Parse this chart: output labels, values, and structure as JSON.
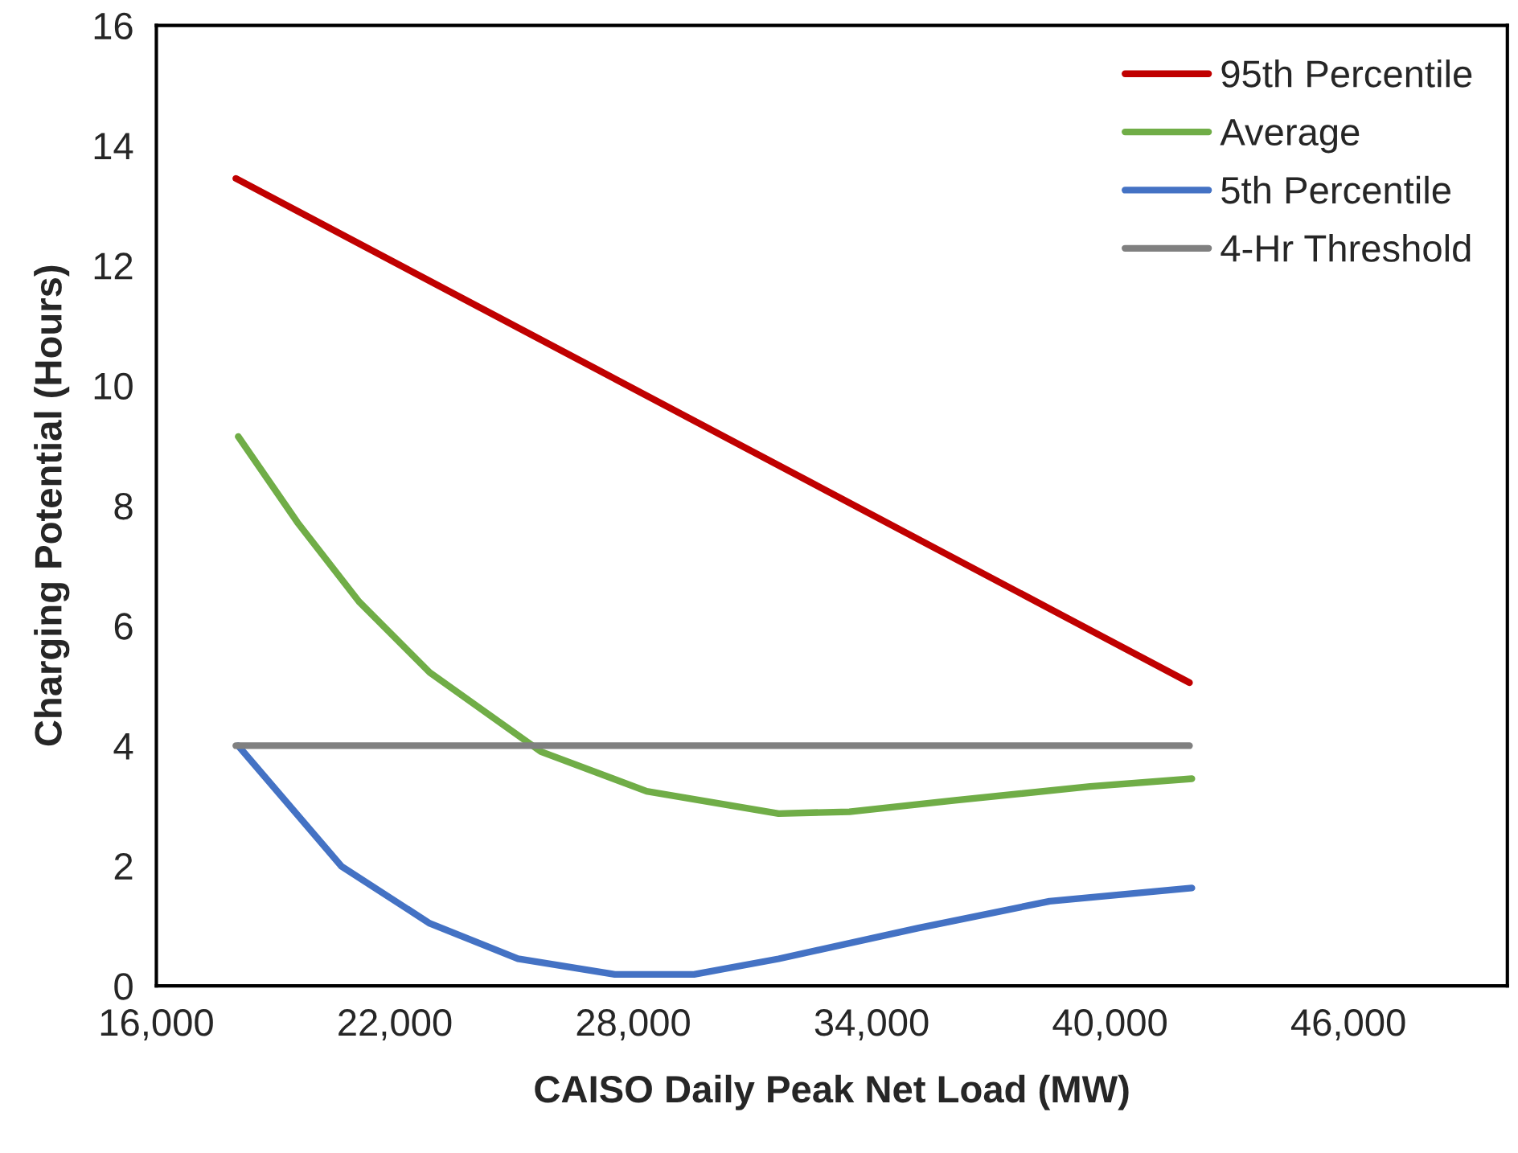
{
  "chart_data": {
    "type": "line",
    "xlabel": "CAISO Daily Peak Net Load (MW)",
    "ylabel": "Charging Potential (Hours)",
    "xlim": [
      16000,
      50000
    ],
    "xticks": [
      {
        "value": 16000,
        "label": "16,000"
      },
      {
        "value": 22000,
        "label": "22,000"
      },
      {
        "value": 28000,
        "label": "28,000"
      },
      {
        "value": 34000,
        "label": "34,000"
      },
      {
        "value": 40000,
        "label": "40,000"
      },
      {
        "value": 46000,
        "label": "46,000"
      }
    ],
    "ylim": [
      0,
      16
    ],
    "yticks": [
      0,
      2,
      4,
      6,
      8,
      10,
      12,
      14,
      16
    ],
    "grid": false,
    "legend": "top right",
    "marker": "none",
    "line_style": "solid",
    "series": [
      {
        "name": "95th Percentile",
        "color": "#c00000",
        "x": [
          18000,
          42000
        ],
        "values": [
          13.45,
          5.05
        ]
      },
      {
        "name": "Average",
        "color": "#70ad47",
        "x": [
          18060,
          19550,
          21100,
          22880,
          25680,
          28340,
          31660,
          33440,
          36100,
          39500,
          42060
        ],
        "values": [
          9.15,
          7.72,
          6.4,
          5.22,
          3.9,
          3.24,
          2.87,
          2.9,
          3.09,
          3.32,
          3.45
        ]
      },
      {
        "name": "5th Percentile",
        "color": "#4472c4",
        "x": [
          18060,
          20660,
          22880,
          25100,
          27540,
          29530,
          31660,
          35160,
          38480,
          42060
        ],
        "values": [
          4.0,
          1.99,
          1.04,
          0.45,
          0.19,
          0.19,
          0.45,
          0.96,
          1.41,
          1.63
        ]
      },
      {
        "name": "4-Hr Threshold",
        "color": "#808080",
        "x": [
          18000,
          42000
        ],
        "values": [
          4,
          4
        ]
      }
    ]
  }
}
